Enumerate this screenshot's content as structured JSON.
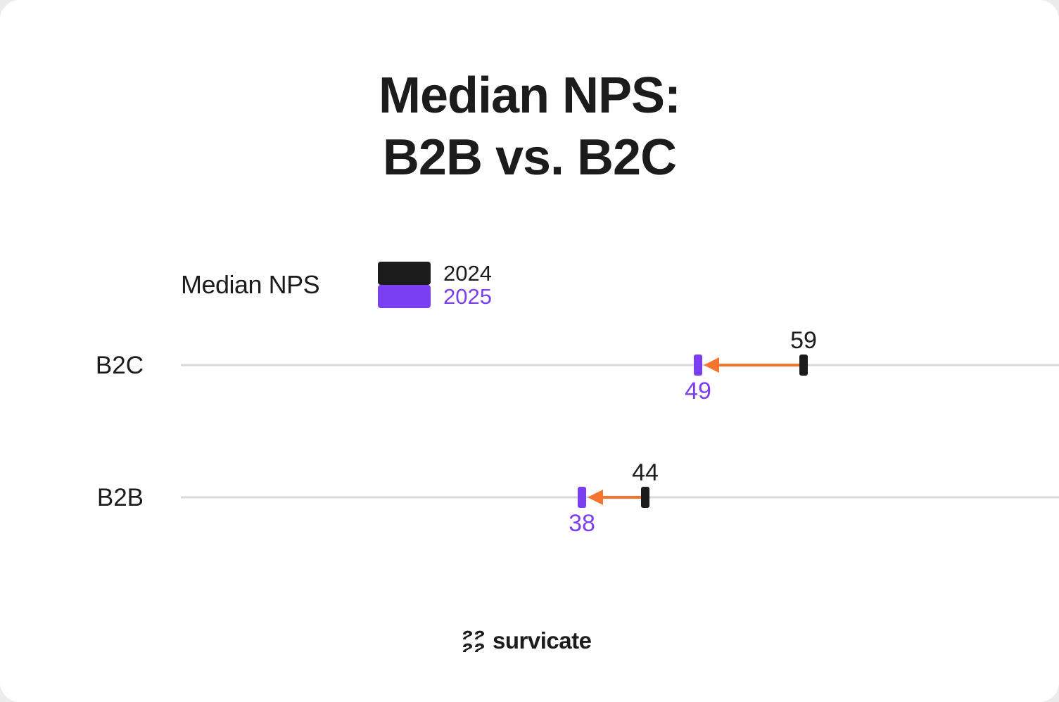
{
  "title": {
    "line1": "Median NPS:",
    "line2": "B2B vs. B2C"
  },
  "legend": {
    "label": "Median NPS",
    "items": [
      {
        "name": "2024",
        "color": "#1c1c1c"
      },
      {
        "name": "2025",
        "color": "#7b3ff2"
      }
    ]
  },
  "colors": {
    "arrow": "#f47430",
    "gridline": "#d9d9d9"
  },
  "brand": {
    "name": "survicate",
    "icon": "survicate-logo-icon"
  },
  "chart_data": {
    "type": "dumbbell",
    "x_range": [
      0,
      100
    ],
    "grid": false,
    "legend_position": "top-left",
    "categories": [
      "B2C",
      "B2B"
    ],
    "series": [
      {
        "name": "2024",
        "values": [
          59,
          44
        ]
      },
      {
        "name": "2025",
        "values": [
          49,
          38
        ]
      }
    ]
  }
}
